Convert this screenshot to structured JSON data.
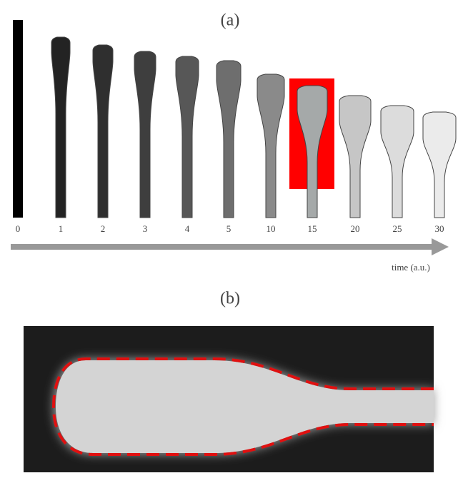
{
  "panel_a": {
    "label": "(a)",
    "times": [
      "0",
      "1",
      "2",
      "3",
      "4",
      "5",
      "10",
      "15",
      "20",
      "25",
      "30"
    ],
    "axis_label": "time (a.u.)"
  },
  "panel_b": {
    "label": "(b)"
  }
}
